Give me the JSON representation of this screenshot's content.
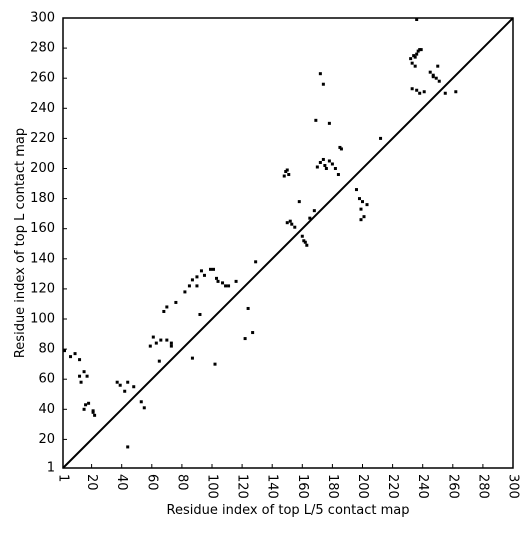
{
  "chart_data": {
    "type": "scatter",
    "x_label": "Residue index of top L/5 contact map",
    "y_label": "Residue index of top L contact map",
    "color": "#000000",
    "xlim": [
      1,
      300
    ],
    "ylim": [
      1,
      300
    ],
    "xticks": [
      1,
      20,
      40,
      60,
      80,
      100,
      120,
      140,
      160,
      180,
      200,
      220,
      240,
      260,
      280,
      300
    ],
    "yticks": [
      1,
      20,
      40,
      60,
      80,
      100,
      120,
      140,
      160,
      180,
      200,
      220,
      240,
      260,
      280,
      300
    ],
    "x": [
      2,
      6,
      9,
      12,
      12,
      13,
      15,
      17,
      16,
      21,
      15,
      18,
      21,
      22,
      37,
      39,
      42,
      44,
      48,
      44,
      53,
      55,
      59,
      61,
      63,
      66,
      65,
      68,
      70,
      70,
      73,
      76,
      73,
      82,
      85,
      87,
      87,
      90,
      90,
      92,
      93,
      95,
      99,
      101,
      103,
      104,
      107,
      109,
      111,
      116,
      122,
      124,
      127,
      102,
      129,
      148,
      149,
      150,
      151,
      152,
      153,
      150,
      155,
      158,
      160,
      161,
      162,
      163,
      165,
      168,
      170,
      172,
      174,
      175,
      176,
      178,
      180,
      182,
      184,
      185,
      196,
      198,
      199,
      200,
      203,
      212,
      232,
      233,
      234,
      235,
      236,
      237,
      238,
      239,
      235,
      233,
      236,
      238,
      241,
      245,
      247,
      249,
      250,
      251,
      255,
      262,
      172,
      174,
      178,
      186,
      199,
      201,
      169,
      236,
      247
    ],
    "values": [
      79,
      75,
      77,
      73,
      62,
      58,
      65,
      62,
      43,
      39,
      40,
      44,
      38,
      36,
      58,
      56,
      52,
      58,
      55,
      15,
      45,
      41,
      82,
      88,
      84,
      86,
      72,
      105,
      108,
      86,
      82,
      111,
      84,
      118,
      122,
      126,
      74,
      122,
      128,
      103,
      132,
      129,
      133,
      133,
      127,
      125,
      124,
      122,
      122,
      125,
      87,
      107,
      91,
      70,
      138,
      195,
      198,
      199,
      196,
      165,
      163,
      164,
      161,
      178,
      155,
      152,
      151,
      149,
      167,
      172,
      201,
      204,
      206,
      202,
      200,
      205,
      203,
      200,
      196,
      214,
      186,
      180,
      166,
      178,
      176,
      220,
      273,
      270,
      275,
      274,
      276,
      278,
      279,
      279,
      268,
      253,
      252,
      250,
      251,
      264,
      262,
      260,
      268,
      258,
      250,
      251,
      263,
      256,
      230,
      213,
      173,
      168,
      232,
      299,
      261
    ]
  }
}
